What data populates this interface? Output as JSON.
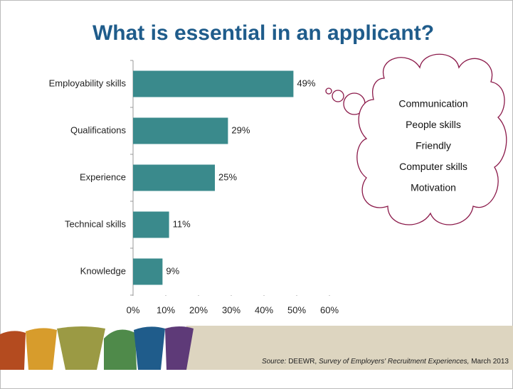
{
  "chart_data": {
    "type": "bar",
    "orientation": "horizontal",
    "title": "What is essential in an applicant?",
    "categories": [
      "Employability skills",
      "Qualifications",
      "Experience",
      "Technical skills",
      "Knowledge"
    ],
    "values": [
      49,
      29,
      25,
      11,
      9
    ],
    "value_labels": [
      "49%",
      "29%",
      "25%",
      "11%",
      "9%"
    ],
    "color": "#3a8a8c",
    "xlim": [
      0,
      60
    ],
    "xticks": [
      {
        "value": 0,
        "label": "0%"
      },
      {
        "value": 10,
        "label": "10%"
      },
      {
        "value": 20,
        "label": "20%"
      },
      {
        "value": 30,
        "label": "30%"
      },
      {
        "value": 40,
        "label": "40%"
      },
      {
        "value": 50,
        "label": "50%"
      },
      {
        "value": 60,
        "label": "60%"
      }
    ],
    "grid": false
  },
  "thought_cloud": {
    "items": [
      "Communication",
      "People skills",
      "Friendly",
      "Computer skills",
      "Motivation"
    ]
  },
  "source": {
    "label": "Source:",
    "publisher": "DEEWR,",
    "title": "Survey of Employers' Recruitment Experiences,",
    "date": "March 2013"
  }
}
